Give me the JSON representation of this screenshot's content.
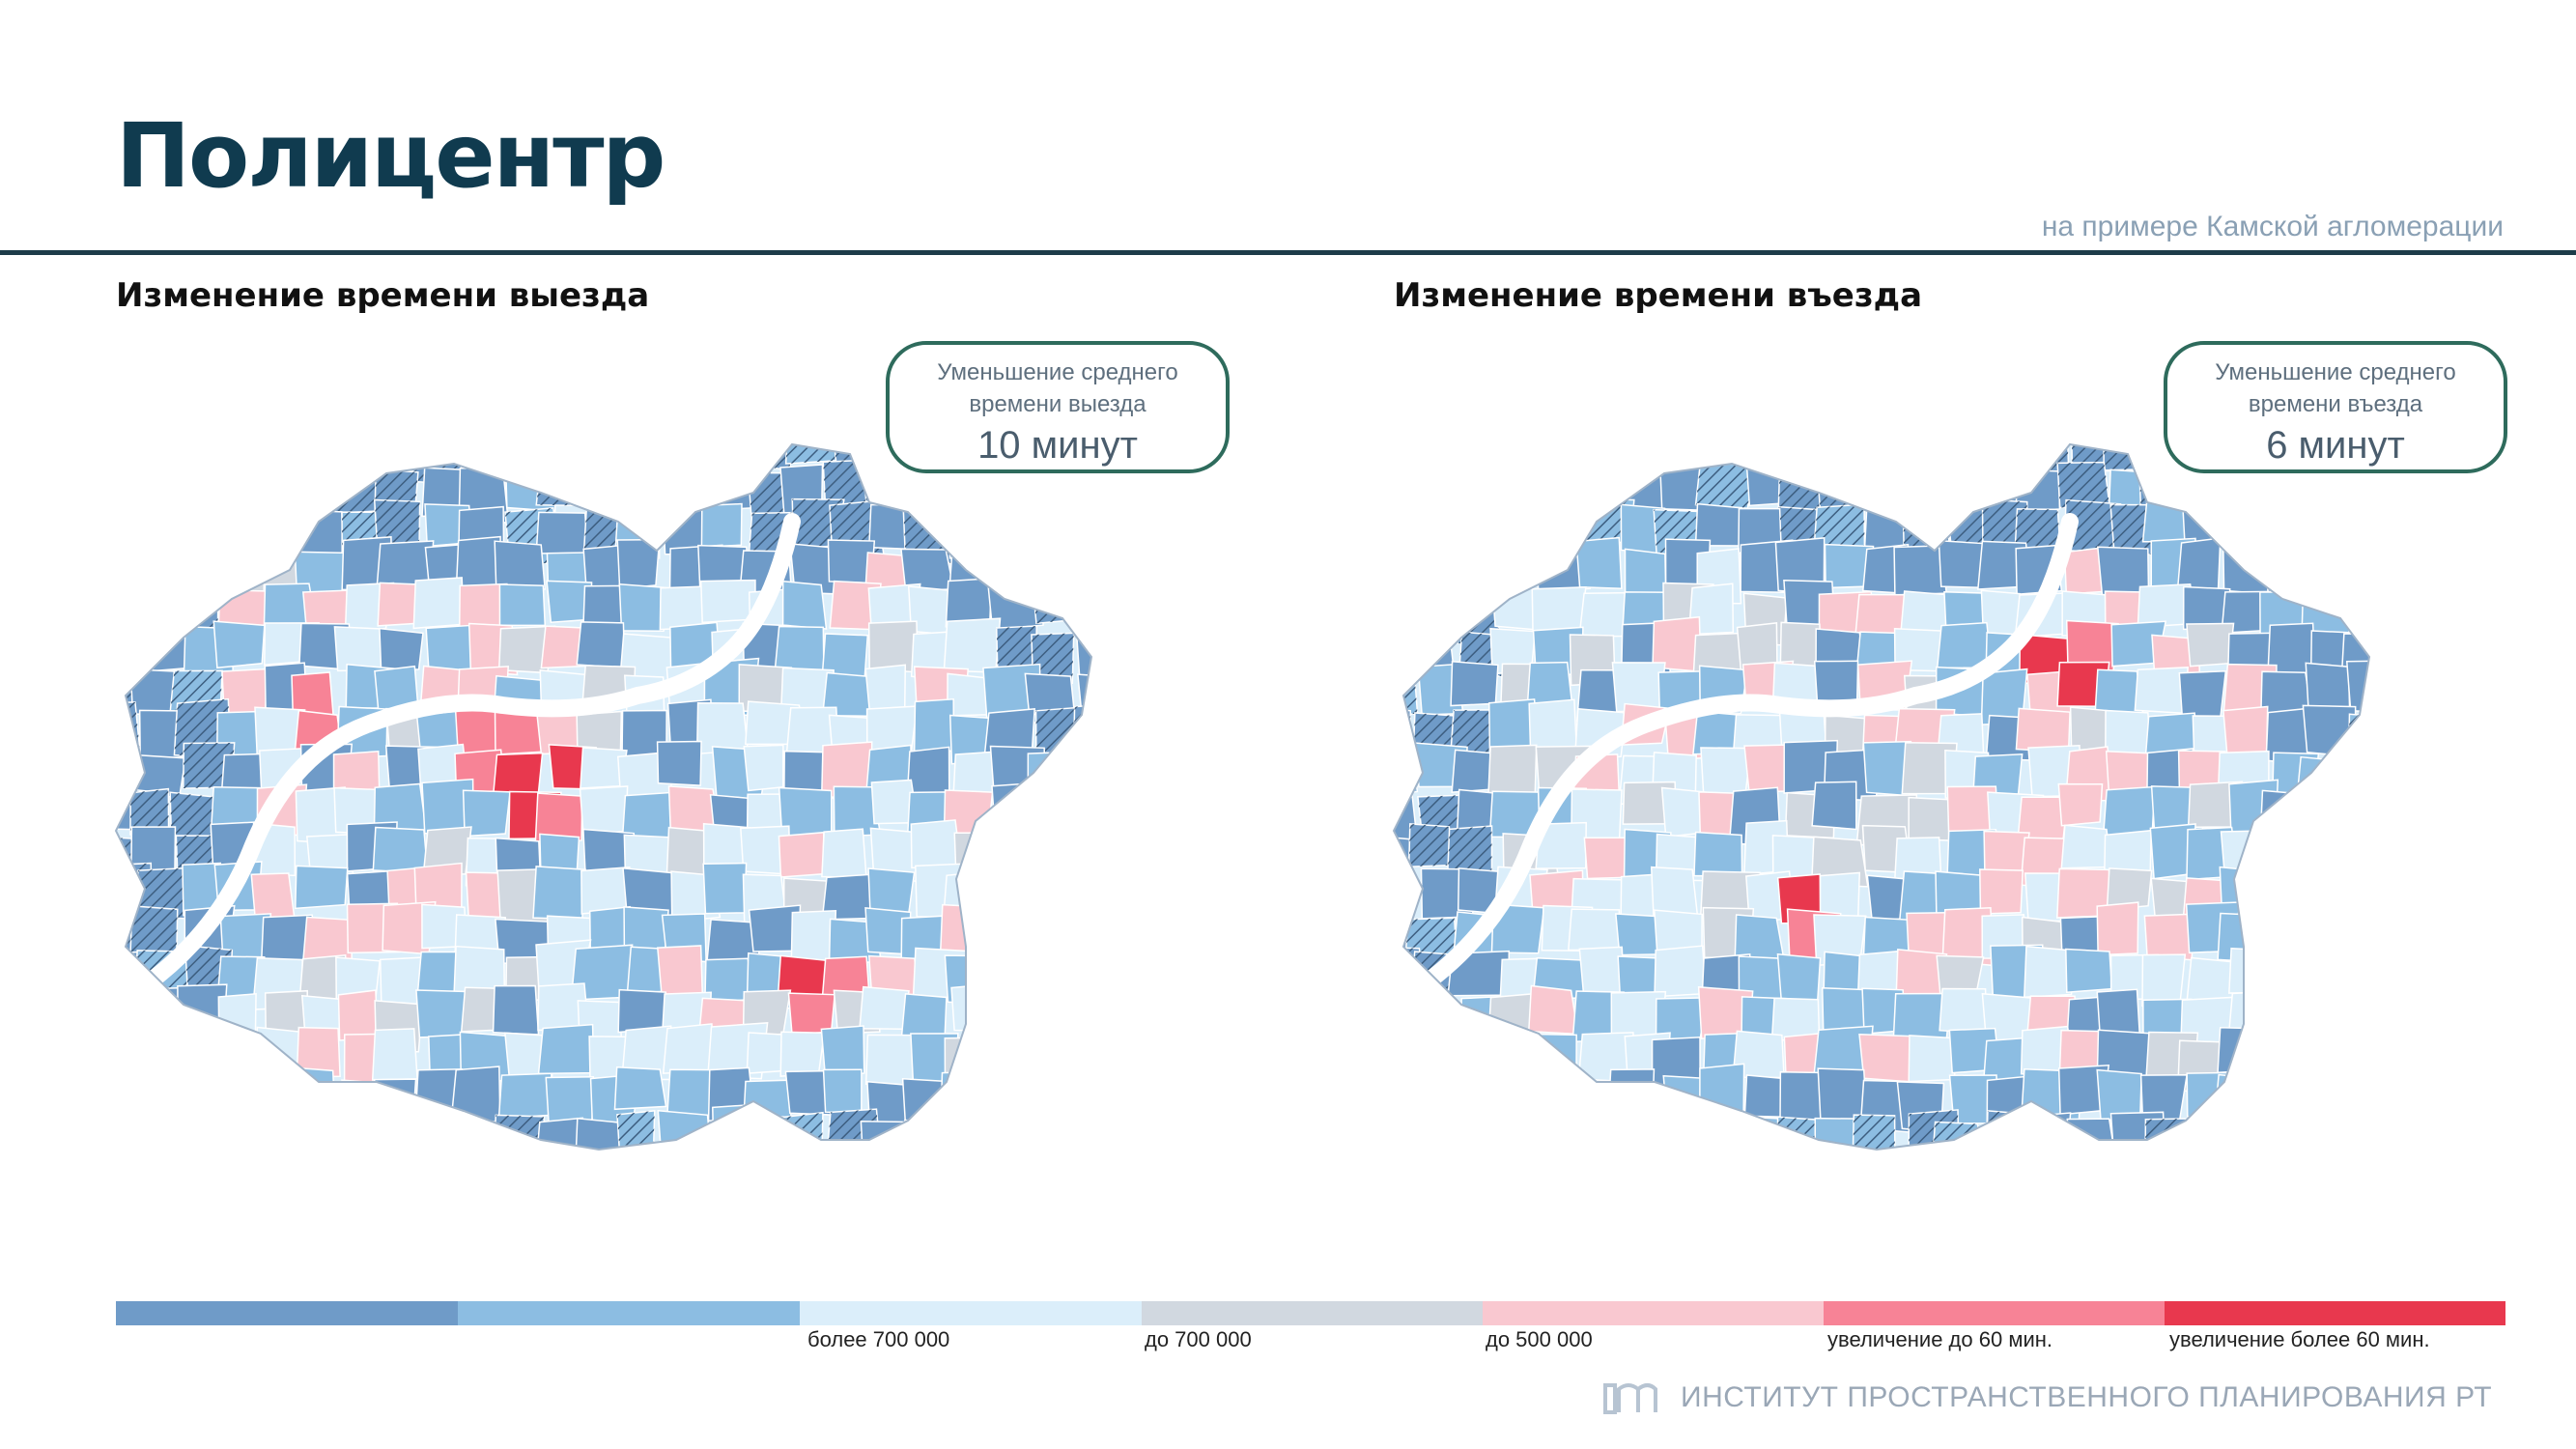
{
  "header": {
    "title": "Полицентр",
    "subtitle": "на примере Камской агломерации"
  },
  "maps": [
    {
      "heading": "Изменение времени выезда",
      "callout": {
        "line1": "Уменьшение среднего",
        "line2": "времени выезда",
        "value": "10 минут"
      }
    },
    {
      "heading": "Изменение времени въезда",
      "callout": {
        "line1": "Уменьшение среднего",
        "line2": "времени въезда",
        "value": "6 минут"
      }
    }
  ],
  "legend": [
    {
      "color": "#6f9bc8",
      "label": ""
    },
    {
      "color": "#8cbde2",
      "label": ""
    },
    {
      "color": "#dbeefa",
      "label": "более 700 000"
    },
    {
      "color": "#d1d8e0",
      "label": "до 700 000"
    },
    {
      "color": "#f9c8d0",
      "label": "до 500 000"
    },
    {
      "color": "#f78396",
      "label": "увеличение до 60 мин."
    },
    {
      "color": "#e8384e",
      "label": "увеличение более 60 мин."
    }
  ],
  "footer": {
    "institute": "ИНСТИТУТ ПРОСТРАНСТВЕННОГО ПЛАНИРОВАНИЯ РТ"
  }
}
